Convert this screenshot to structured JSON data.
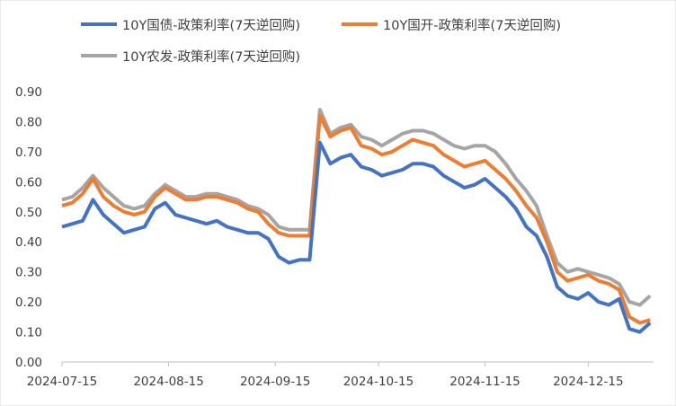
{
  "chart_data": {
    "type": "line",
    "title": "",
    "xlabel": "",
    "ylabel": "",
    "ylim": [
      0,
      0.9
    ],
    "yticks": [
      "0.00",
      "0.10",
      "0.20",
      "0.30",
      "0.40",
      "0.50",
      "0.60",
      "0.70",
      "0.80",
      "0.90"
    ],
    "xticks": [
      "2024-07-15",
      "2024-08-15",
      "2024-09-15",
      "2024-10-15",
      "2024-11-15",
      "2024-12-15"
    ],
    "xlim": [
      "2024-07-15",
      "2025-01-03"
    ],
    "grid": false,
    "legend_position": "top",
    "x": [
      "2024-07-15",
      "2024-07-18",
      "2024-07-21",
      "2024-07-24",
      "2024-07-27",
      "2024-07-30",
      "2024-08-02",
      "2024-08-05",
      "2024-08-08",
      "2024-08-11",
      "2024-08-14",
      "2024-08-17",
      "2024-08-20",
      "2024-08-23",
      "2024-08-26",
      "2024-08-29",
      "2024-09-01",
      "2024-09-04",
      "2024-09-07",
      "2024-09-10",
      "2024-09-13",
      "2024-09-16",
      "2024-09-19",
      "2024-09-22",
      "2024-09-25",
      "2024-09-28",
      "2024-10-01",
      "2024-10-04",
      "2024-10-07",
      "2024-10-10",
      "2024-10-13",
      "2024-10-16",
      "2024-10-19",
      "2024-10-22",
      "2024-10-25",
      "2024-10-28",
      "2024-10-31",
      "2024-11-03",
      "2024-11-06",
      "2024-11-09",
      "2024-11-12",
      "2024-11-15",
      "2024-11-18",
      "2024-11-21",
      "2024-11-24",
      "2024-11-27",
      "2024-11-30",
      "2024-12-03",
      "2024-12-06",
      "2024-12-09",
      "2024-12-12",
      "2024-12-15",
      "2024-12-18",
      "2024-12-21",
      "2024-12-24",
      "2024-12-27",
      "2024-12-30",
      "2025-01-02"
    ],
    "series": [
      {
        "name": "10Y国债-政策利率(7天逆回购)",
        "color": "#4472C4",
        "values": [
          0.45,
          0.46,
          0.47,
          0.54,
          0.49,
          0.46,
          0.43,
          0.44,
          0.45,
          0.51,
          0.53,
          0.49,
          0.48,
          0.47,
          0.46,
          0.47,
          0.45,
          0.44,
          0.43,
          0.43,
          0.41,
          0.35,
          0.33,
          0.34,
          0.34,
          0.73,
          0.66,
          0.68,
          0.69,
          0.65,
          0.64,
          0.62,
          0.63,
          0.64,
          0.66,
          0.66,
          0.65,
          0.62,
          0.6,
          0.58,
          0.59,
          0.61,
          0.58,
          0.55,
          0.51,
          0.45,
          0.42,
          0.35,
          0.25,
          0.22,
          0.21,
          0.23,
          0.2,
          0.19,
          0.21,
          0.11,
          0.1,
          0.13
        ]
      },
      {
        "name": "10Y国开-政策利率(7天逆回购)",
        "color": "#ED7D31",
        "values": [
          0.52,
          0.53,
          0.56,
          0.61,
          0.55,
          0.52,
          0.5,
          0.49,
          0.5,
          0.55,
          0.58,
          0.56,
          0.54,
          0.54,
          0.55,
          0.55,
          0.54,
          0.53,
          0.51,
          0.5,
          0.46,
          0.43,
          0.42,
          0.42,
          0.42,
          0.82,
          0.75,
          0.77,
          0.78,
          0.72,
          0.71,
          0.69,
          0.7,
          0.72,
          0.74,
          0.73,
          0.72,
          0.69,
          0.67,
          0.65,
          0.66,
          0.67,
          0.64,
          0.61,
          0.57,
          0.52,
          0.48,
          0.4,
          0.3,
          0.27,
          0.28,
          0.29,
          0.27,
          0.26,
          0.24,
          0.15,
          0.13,
          0.14
        ]
      },
      {
        "name": "10Y农发-政策利率(7天逆回购)",
        "color": "#A5A5A5",
        "values": [
          0.54,
          0.55,
          0.58,
          0.62,
          0.58,
          0.55,
          0.52,
          0.51,
          0.52,
          0.56,
          0.59,
          0.57,
          0.55,
          0.55,
          0.56,
          0.56,
          0.55,
          0.54,
          0.52,
          0.51,
          0.49,
          0.45,
          0.44,
          0.44,
          0.44,
          0.84,
          0.76,
          0.78,
          0.79,
          0.75,
          0.74,
          0.72,
          0.74,
          0.76,
          0.77,
          0.77,
          0.76,
          0.74,
          0.72,
          0.71,
          0.72,
          0.72,
          0.7,
          0.66,
          0.61,
          0.57,
          0.52,
          0.42,
          0.33,
          0.3,
          0.31,
          0.3,
          0.29,
          0.28,
          0.26,
          0.2,
          0.19,
          0.22
        ]
      }
    ]
  }
}
